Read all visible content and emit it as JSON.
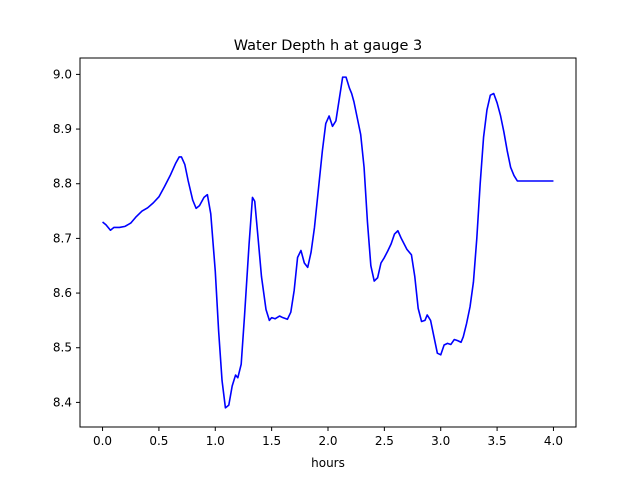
{
  "chart_data": {
    "type": "line",
    "title": "Water Depth h at gauge 3",
    "xlabel": "hours",
    "ylabel": "",
    "xlim": [
      -0.2,
      4.2
    ],
    "ylim": [
      8.355,
      9.03
    ],
    "xticks": [
      0.0,
      0.5,
      1.0,
      1.5,
      2.0,
      2.5,
      3.0,
      3.5,
      4.0
    ],
    "xtick_labels": [
      "0.0",
      "0.5",
      "1.0",
      "1.5",
      "2.0",
      "2.5",
      "3.0",
      "3.5",
      "4.0"
    ],
    "yticks": [
      8.4,
      8.5,
      8.6,
      8.7,
      8.8,
      8.9,
      9.0
    ],
    "ytick_labels": [
      "8.4",
      "8.5",
      "8.6",
      "8.7",
      "8.8",
      "8.9",
      "9.0"
    ],
    "grid": false,
    "legend": "none",
    "series": [
      {
        "color": "#0000ff",
        "x": [
          0.0,
          0.03,
          0.07,
          0.1,
          0.15,
          0.2,
          0.25,
          0.3,
          0.35,
          0.4,
          0.45,
          0.5,
          0.55,
          0.6,
          0.65,
          0.68,
          0.7,
          0.73,
          0.76,
          0.8,
          0.83,
          0.86,
          0.9,
          0.93,
          0.96,
          1.0,
          1.03,
          1.06,
          1.09,
          1.12,
          1.15,
          1.18,
          1.2,
          1.23,
          1.26,
          1.3,
          1.33,
          1.35,
          1.38,
          1.41,
          1.45,
          1.48,
          1.5,
          1.53,
          1.57,
          1.6,
          1.64,
          1.67,
          1.7,
          1.73,
          1.76,
          1.79,
          1.82,
          1.85,
          1.88,
          1.92,
          1.95,
          1.98,
          2.01,
          2.04,
          2.07,
          2.1,
          2.13,
          2.16,
          2.19,
          2.21,
          2.23,
          2.26,
          2.29,
          2.32,
          2.35,
          2.38,
          2.41,
          2.44,
          2.47,
          2.5,
          2.53,
          2.56,
          2.59,
          2.62,
          2.65,
          2.7,
          2.74,
          2.77,
          2.8,
          2.83,
          2.86,
          2.88,
          2.91,
          2.94,
          2.97,
          3.0,
          3.03,
          3.06,
          3.09,
          3.12,
          3.15,
          3.18,
          3.2,
          3.23,
          3.26,
          3.29,
          3.32,
          3.35,
          3.38,
          3.41,
          3.44,
          3.47,
          3.5,
          3.53,
          3.56,
          3.59,
          3.62,
          3.65,
          3.68,
          3.71,
          3.74,
          3.77,
          3.8,
          3.83,
          3.86,
          3.9,
          3.93,
          3.96,
          4.0
        ],
        "y": [
          8.73,
          8.725,
          8.715,
          8.72,
          8.72,
          8.722,
          8.728,
          8.74,
          8.75,
          8.756,
          8.765,
          8.776,
          8.795,
          8.815,
          8.838,
          8.849,
          8.849,
          8.835,
          8.805,
          8.77,
          8.755,
          8.76,
          8.775,
          8.78,
          8.745,
          8.64,
          8.53,
          8.44,
          8.39,
          8.395,
          8.43,
          8.45,
          8.445,
          8.47,
          8.56,
          8.69,
          8.775,
          8.768,
          8.7,
          8.63,
          8.57,
          8.55,
          8.555,
          8.553,
          8.558,
          8.555,
          8.552,
          8.565,
          8.605,
          8.665,
          8.678,
          8.655,
          8.647,
          8.675,
          8.72,
          8.8,
          8.86,
          8.91,
          8.924,
          8.905,
          8.915,
          8.955,
          8.995,
          8.995,
          8.975,
          8.965,
          8.95,
          8.92,
          8.89,
          8.83,
          8.73,
          8.65,
          8.622,
          8.628,
          8.655,
          8.665,
          8.677,
          8.69,
          8.708,
          8.714,
          8.7,
          8.68,
          8.67,
          8.63,
          8.572,
          8.548,
          8.55,
          8.56,
          8.55,
          8.52,
          8.49,
          8.487,
          8.505,
          8.508,
          8.506,
          8.515,
          8.513,
          8.51,
          8.52,
          8.545,
          8.575,
          8.62,
          8.7,
          8.8,
          8.885,
          8.935,
          8.962,
          8.965,
          8.948,
          8.925,
          8.895,
          8.86,
          8.83,
          8.815,
          8.805,
          8.805,
          8.805,
          8.805,
          8.805,
          8.805,
          8.805,
          8.805,
          8.805,
          8.805,
          8.805
        ]
      }
    ]
  }
}
